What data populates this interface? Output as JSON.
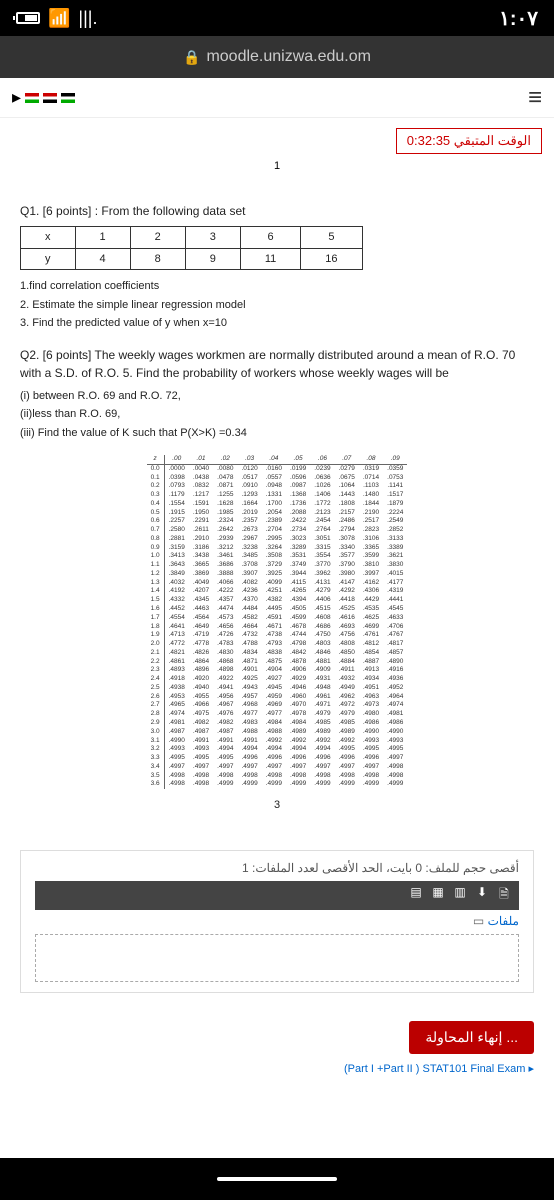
{
  "status": {
    "time": "١:٠٧",
    "wifi_glyph": "📶",
    "signal_glyph": "|||."
  },
  "url": {
    "lock": "🔒",
    "text": "moodle.unizwa.edu.om"
  },
  "timer": {
    "label": "الوقت المتبقي 0:32:35"
  },
  "marker_1": "1",
  "q1": {
    "title": "Q1. [6 points]   : From the following data set",
    "table": {
      "headers": [
        "x",
        "1",
        "2",
        "3",
        "6",
        "5"
      ],
      "row2": [
        "y",
        "4",
        "8",
        "9",
        "11",
        "16"
      ]
    },
    "items": [
      "1.find correlation coefficients",
      "2. Estimate the simple linear regression model",
      "3. Find the predicted value of y when x=10"
    ]
  },
  "q2": {
    "intro": "Q2. [6 points] The weekly wages workmen are normally distributed around a mean of R.O. 70 with a S.D. of R.O. 5. Find the probability of workers whose weekly wages will be",
    "items": [
      "(i) between R.O. 69 and R.O. 72,",
      "(ii)less than R.O. 69,",
      "(iii) Find the value of K such that P(X>K) =0.34"
    ]
  },
  "ztable": {
    "header": [
      "z",
      ".00",
      ".01",
      ".02",
      ".03",
      ".04",
      ".05",
      ".06",
      ".07",
      ".08",
      ".09"
    ],
    "rows": [
      [
        "0.0",
        ".0000",
        ".0040",
        ".0080",
        ".0120",
        ".0160",
        ".0199",
        ".0239",
        ".0279",
        ".0319",
        ".0359"
      ],
      [
        "0.1",
        ".0398",
        ".0438",
        ".0478",
        ".0517",
        ".0557",
        ".0596",
        ".0636",
        ".0675",
        ".0714",
        ".0753"
      ],
      [
        "0.2",
        ".0793",
        ".0832",
        ".0871",
        ".0910",
        ".0948",
        ".0987",
        ".1026",
        ".1064",
        ".1103",
        ".1141"
      ],
      [
        "0.3",
        ".1179",
        ".1217",
        ".1255",
        ".1293",
        ".1331",
        ".1368",
        ".1406",
        ".1443",
        ".1480",
        ".1517"
      ],
      [
        "0.4",
        ".1554",
        ".1591",
        ".1628",
        ".1664",
        ".1700",
        ".1736",
        ".1772",
        ".1808",
        ".1844",
        ".1879"
      ],
      [
        "0.5",
        ".1915",
        ".1950",
        ".1985",
        ".2019",
        ".2054",
        ".2088",
        ".2123",
        ".2157",
        ".2190",
        ".2224"
      ],
      [
        "0.6",
        ".2257",
        ".2291",
        ".2324",
        ".2357",
        ".2389",
        ".2422",
        ".2454",
        ".2486",
        ".2517",
        ".2549"
      ],
      [
        "0.7",
        ".2580",
        ".2611",
        ".2642",
        ".2673",
        ".2704",
        ".2734",
        ".2764",
        ".2794",
        ".2823",
        ".2852"
      ],
      [
        "0.8",
        ".2881",
        ".2910",
        ".2939",
        ".2967",
        ".2995",
        ".3023",
        ".3051",
        ".3078",
        ".3106",
        ".3133"
      ],
      [
        "0.9",
        ".3159",
        ".3186",
        ".3212",
        ".3238",
        ".3264",
        ".3289",
        ".3315",
        ".3340",
        ".3365",
        ".3389"
      ],
      [
        "1.0",
        ".3413",
        ".3438",
        ".3461",
        ".3485",
        ".3508",
        ".3531",
        ".3554",
        ".3577",
        ".3599",
        ".3621"
      ],
      [
        "1.1",
        ".3643",
        ".3665",
        ".3686",
        ".3708",
        ".3729",
        ".3749",
        ".3770",
        ".3790",
        ".3810",
        ".3830"
      ],
      [
        "1.2",
        ".3849",
        ".3869",
        ".3888",
        ".3907",
        ".3925",
        ".3944",
        ".3962",
        ".3980",
        ".3997",
        ".4015"
      ],
      [
        "1.3",
        ".4032",
        ".4049",
        ".4066",
        ".4082",
        ".4099",
        ".4115",
        ".4131",
        ".4147",
        ".4162",
        ".4177"
      ],
      [
        "1.4",
        ".4192",
        ".4207",
        ".4222",
        ".4236",
        ".4251",
        ".4265",
        ".4279",
        ".4292",
        ".4306",
        ".4319"
      ],
      [
        "1.5",
        ".4332",
        ".4345",
        ".4357",
        ".4370",
        ".4382",
        ".4394",
        ".4406",
        ".4418",
        ".4429",
        ".4441"
      ],
      [
        "1.6",
        ".4452",
        ".4463",
        ".4474",
        ".4484",
        ".4495",
        ".4505",
        ".4515",
        ".4525",
        ".4535",
        ".4545"
      ],
      [
        "1.7",
        ".4554",
        ".4564",
        ".4573",
        ".4582",
        ".4591",
        ".4599",
        ".4608",
        ".4616",
        ".4625",
        ".4633"
      ],
      [
        "1.8",
        ".4641",
        ".4649",
        ".4656",
        ".4664",
        ".4671",
        ".4678",
        ".4686",
        ".4693",
        ".4699",
        ".4706"
      ],
      [
        "1.9",
        ".4713",
        ".4719",
        ".4726",
        ".4732",
        ".4738",
        ".4744",
        ".4750",
        ".4756",
        ".4761",
        ".4767"
      ],
      [
        "2.0",
        ".4772",
        ".4778",
        ".4783",
        ".4788",
        ".4793",
        ".4798",
        ".4803",
        ".4808",
        ".4812",
        ".4817"
      ],
      [
        "2.1",
        ".4821",
        ".4826",
        ".4830",
        ".4834",
        ".4838",
        ".4842",
        ".4846",
        ".4850",
        ".4854",
        ".4857"
      ],
      [
        "2.2",
        ".4861",
        ".4864",
        ".4868",
        ".4871",
        ".4875",
        ".4878",
        ".4881",
        ".4884",
        ".4887",
        ".4890"
      ],
      [
        "2.3",
        ".4893",
        ".4896",
        ".4898",
        ".4901",
        ".4904",
        ".4906",
        ".4909",
        ".4911",
        ".4913",
        ".4916"
      ],
      [
        "2.4",
        ".4918",
        ".4920",
        ".4922",
        ".4925",
        ".4927",
        ".4929",
        ".4931",
        ".4932",
        ".4934",
        ".4936"
      ],
      [
        "2.5",
        ".4938",
        ".4940",
        ".4941",
        ".4943",
        ".4945",
        ".4946",
        ".4948",
        ".4949",
        ".4951",
        ".4952"
      ],
      [
        "2.6",
        ".4953",
        ".4955",
        ".4956",
        ".4957",
        ".4959",
        ".4960",
        ".4961",
        ".4962",
        ".4963",
        ".4964"
      ],
      [
        "2.7",
        ".4965",
        ".4966",
        ".4967",
        ".4968",
        ".4969",
        ".4970",
        ".4971",
        ".4972",
        ".4973",
        ".4974"
      ],
      [
        "2.8",
        ".4974",
        ".4975",
        ".4976",
        ".4977",
        ".4977",
        ".4978",
        ".4979",
        ".4979",
        ".4980",
        ".4981"
      ],
      [
        "2.9",
        ".4981",
        ".4982",
        ".4982",
        ".4983",
        ".4984",
        ".4984",
        ".4985",
        ".4985",
        ".4986",
        ".4986"
      ],
      [
        "3.0",
        ".4987",
        ".4987",
        ".4987",
        ".4988",
        ".4988",
        ".4989",
        ".4989",
        ".4989",
        ".4990",
        ".4990"
      ],
      [
        "3.1",
        ".4990",
        ".4991",
        ".4991",
        ".4991",
        ".4992",
        ".4992",
        ".4992",
        ".4992",
        ".4993",
        ".4993"
      ],
      [
        "3.2",
        ".4993",
        ".4993",
        ".4994",
        ".4994",
        ".4994",
        ".4994",
        ".4994",
        ".4995",
        ".4995",
        ".4995"
      ],
      [
        "3.3",
        ".4995",
        ".4995",
        ".4995",
        ".4996",
        ".4996",
        ".4996",
        ".4996",
        ".4996",
        ".4996",
        ".4997"
      ],
      [
        "3.4",
        ".4997",
        ".4997",
        ".4997",
        ".4997",
        ".4997",
        ".4997",
        ".4997",
        ".4997",
        ".4997",
        ".4998"
      ],
      [
        "3.5",
        ".4998",
        ".4998",
        ".4998",
        ".4998",
        ".4998",
        ".4998",
        ".4998",
        ".4998",
        ".4998",
        ".4998"
      ],
      [
        "3.6",
        ".4998",
        ".4998",
        ".4999",
        ".4999",
        ".4999",
        ".4999",
        ".4999",
        ".4999",
        ".4999",
        ".4999"
      ]
    ]
  },
  "marker_3": "3",
  "upload": {
    "hint": "أقصى حجم للملف: 0 بايت، الحد الأقصى لعدد الملفات: 1",
    "files": "ملفات"
  },
  "end_button": "إنهاء المحاولة ...",
  "footer": "(Part I +Part II ) STAT101 Final Exam ▸"
}
